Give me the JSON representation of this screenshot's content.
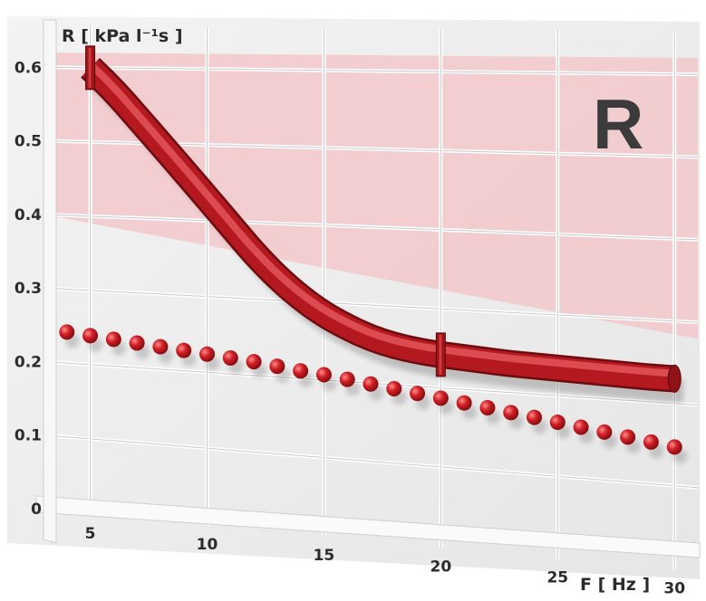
{
  "chart_data": {
    "type": "line",
    "title": "",
    "annotation": "R",
    "xlabel": "F  [ Hz ]",
    "ylabel": "R    [ kPa l⁻¹s ]",
    "xlim": [
      3,
      31
    ],
    "ylim": [
      0,
      0.62
    ],
    "x_ticks": [
      5,
      10,
      15,
      20,
      25,
      30
    ],
    "y_ticks": [
      0,
      0.1,
      0.2,
      0.3,
      0.4,
      0.5,
      0.6
    ],
    "x_tick_labels": [
      "5",
      "10",
      "15",
      "20",
      "25",
      "30"
    ],
    "y_tick_labels": [
      "0",
      "0.1",
      "0.2",
      "0.3",
      "0.4",
      "0.5",
      "0.6"
    ],
    "grid": true,
    "normal_range_band": [
      0.4,
      0.62
    ],
    "series": [
      {
        "style": "tube",
        "color": "#b3191e",
        "x": [
          5,
          6,
          7,
          8,
          9,
          10,
          11,
          12,
          13,
          14,
          15,
          16,
          17,
          18,
          19,
          20,
          21,
          22,
          23,
          24,
          25,
          26,
          27,
          28,
          29,
          30
        ],
        "values": [
          0.6,
          0.57,
          0.535,
          0.5,
          0.465,
          0.43,
          0.395,
          0.36,
          0.33,
          0.305,
          0.285,
          0.27,
          0.258,
          0.25,
          0.245,
          0.242,
          0.24,
          0.238,
          0.236,
          0.235,
          0.234,
          0.233,
          0.232,
          0.231,
          0.23,
          0.23
        ]
      },
      {
        "style": "dots",
        "color": "#c21d22",
        "x": [
          4,
          5,
          6,
          7,
          8,
          9,
          10,
          11,
          12,
          13,
          14,
          15,
          16,
          17,
          18,
          19,
          20,
          21,
          22,
          23,
          24,
          25,
          26,
          27,
          28,
          29,
          30
        ],
        "values": [
          0.242,
          0.239,
          0.236,
          0.233,
          0.23,
          0.227,
          0.224,
          0.221,
          0.218,
          0.214,
          0.21,
          0.207,
          0.203,
          0.199,
          0.195,
          0.191,
          0.187,
          0.183,
          0.179,
          0.175,
          0.171,
          0.167,
          0.163,
          0.159,
          0.155,
          0.151,
          0.147
        ]
      }
    ],
    "markers": [
      5,
      20
    ]
  }
}
